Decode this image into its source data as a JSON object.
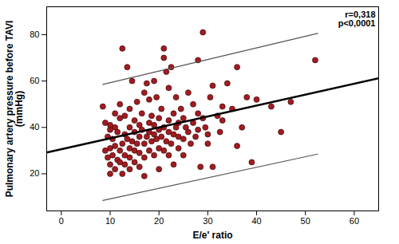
{
  "chart_data": {
    "type": "scatter",
    "x_label": "E/e' ratio",
    "y_label": "Pulmonary artery pressure before TAVI\n(mmHg)",
    "annotations": [
      "r=0,318",
      "p<0,0001"
    ],
    "xlim": [
      -3,
      65
    ],
    "ylim": [
      4,
      92
    ],
    "xticks": [
      0,
      10,
      20,
      30,
      40,
      50,
      60
    ],
    "yticks": [
      20,
      40,
      60,
      80
    ],
    "grid": false,
    "series": [
      {
        "type": "scatter",
        "color": "#a31b20",
        "marker": "circle",
        "x": [
          8.5,
          9,
          9,
          9.5,
          9.5,
          10,
          10,
          10,
          10,
          10,
          10.5,
          10.5,
          11,
          11,
          11,
          11,
          11.5,
          11.5,
          12,
          12,
          12,
          12,
          12.5,
          12.5,
          12.5,
          13,
          13,
          13,
          13,
          13.5,
          13.5,
          14,
          14,
          14,
          14,
          14,
          14.5,
          14.5,
          15,
          15,
          15,
          15,
          15.5,
          15.5,
          16,
          16,
          16,
          16,
          16.5,
          16.5,
          17,
          17,
          17,
          17,
          17.5,
          17.5,
          18,
          18,
          18,
          18,
          18.5,
          18.5,
          19,
          19,
          19,
          19,
          19.5,
          19.5,
          20,
          20,
          20,
          20,
          20.5,
          20.5,
          21,
          21,
          21,
          21,
          21.5,
          21.5,
          22,
          22,
          22,
          22,
          22.5,
          22.5,
          23,
          23,
          23,
          23.5,
          23.5,
          24,
          24,
          24,
          24.5,
          25,
          25,
          25,
          25.5,
          26,
          26,
          26.5,
          27,
          27,
          27.5,
          28,
          28,
          28,
          28.5,
          29,
          29,
          29.5,
          30,
          30,
          30.5,
          31,
          31,
          32,
          32.5,
          33,
          33,
          34,
          35,
          36,
          36,
          37,
          38,
          39,
          40,
          43,
          45,
          47,
          52
        ],
        "values": [
          49,
          42,
          30,
          27,
          36,
          20,
          24,
          31,
          39,
          41,
          28,
          35,
          40,
          22,
          32,
          46,
          26,
          38,
          30,
          44,
          25,
          50,
          33,
          74,
          20,
          28,
          37,
          45,
          24,
          35,
          66,
          31,
          40,
          22,
          48,
          27,
          60,
          34,
          30,
          43,
          38,
          25,
          33,
          51,
          29,
          36,
          41,
          23,
          39,
          46,
          27,
          33,
          55,
          19,
          36,
          59,
          30,
          42,
          38,
          52,
          34,
          45,
          28,
          37,
          41,
          60,
          35,
          53,
          31,
          39,
          44,
          22,
          36,
          48,
          30,
          40,
          74,
          70,
          34,
          64,
          28,
          38,
          43,
          57,
          33,
          66,
          37,
          24,
          46,
          40,
          53,
          31,
          42,
          36,
          48,
          35,
          44,
          28,
          40,
          38,
          55,
          33,
          42,
          50,
          36,
          39,
          46,
          69,
          23,
          81,
          44,
          40,
          37,
          33,
          53,
          58,
          23,
          45,
          38,
          49,
          43,
          59,
          48,
          66,
          32,
          40,
          53,
          25,
          52,
          49,
          38,
          51,
          69
        ]
      },
      {
        "type": "line",
        "color": "#000000",
        "x": [
          -3,
          65
        ],
        "values": [
          29.2,
          61.2
        ]
      },
      {
        "type": "line",
        "color": "#555555",
        "x": [
          8.5,
          52.5
        ],
        "values": [
          58.5,
          80.5
        ]
      },
      {
        "type": "line",
        "color": "#555555",
        "x": [
          8.5,
          52.5
        ],
        "values": [
          8.5,
          28.5
        ]
      }
    ]
  }
}
